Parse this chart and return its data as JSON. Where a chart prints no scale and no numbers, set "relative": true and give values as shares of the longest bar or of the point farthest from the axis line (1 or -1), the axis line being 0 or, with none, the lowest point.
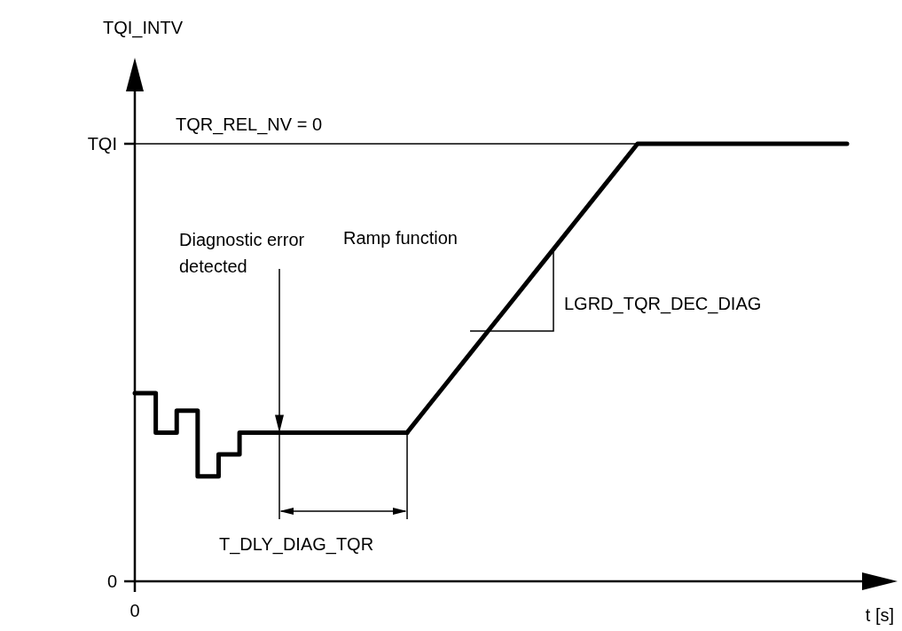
{
  "chart_data": {
    "type": "line",
    "xlabel": "t [s]",
    "relative": true,
    "categories": [
      null,
      null,
      null,
      null,
      null,
      null,
      null,
      null,
      null,
      null,
      null,
      null,
      null,
      null,
      null,
      null,
      null,
      null,
      null,
      null,
      null,
      null,
      null,
      null,
      null,
      null,
      null,
      null,
      null,
      null,
      null,
      null,
      null,
      null,
      null
    ],
    "series": [
      {
        "type": "step",
        "color": "#000000",
        "values": [
          0.43,
          0.34,
          0.39,
          0.24,
          0.29,
          0.34,
          0.34,
          0.34,
          0.34,
          0.34,
          0.34,
          0.34,
          0.34,
          0.34,
          null,
          null,
          null,
          null,
          null,
          null,
          null,
          null,
          null,
          null,
          null,
          null,
          null,
          null,
          null,
          null,
          null,
          null,
          null,
          null,
          null
        ]
      },
      {
        "type": "line",
        "color": "#000000",
        "values": [
          null,
          null,
          null,
          null,
          null,
          null,
          null,
          null,
          null,
          null,
          null,
          null,
          null,
          0.34,
          0.4,
          0.46,
          0.52,
          0.58,
          0.64,
          0.7,
          0.76,
          0.82,
          0.88,
          0.94,
          1,
          1,
          1,
          1,
          1,
          1,
          1,
          1,
          1,
          1,
          1
        ]
      }
    ],
    "ref_lines": [
      {
        "axis": "y",
        "value": 1,
        "color": "#000000"
      }
    ],
    "annotations": [
      "Diagnostic error detected",
      "Ramp function",
      "LGRD_TQR_DEC_DIAG",
      "T_DLY_DIAG_TQR",
      "TQR_REL_NV = 0",
      "TQI",
      "0",
      "0",
      "TQI_INTV"
    ],
    "grid": false,
    "legend": false,
    "marker": "none",
    "line_style": "solid"
  }
}
